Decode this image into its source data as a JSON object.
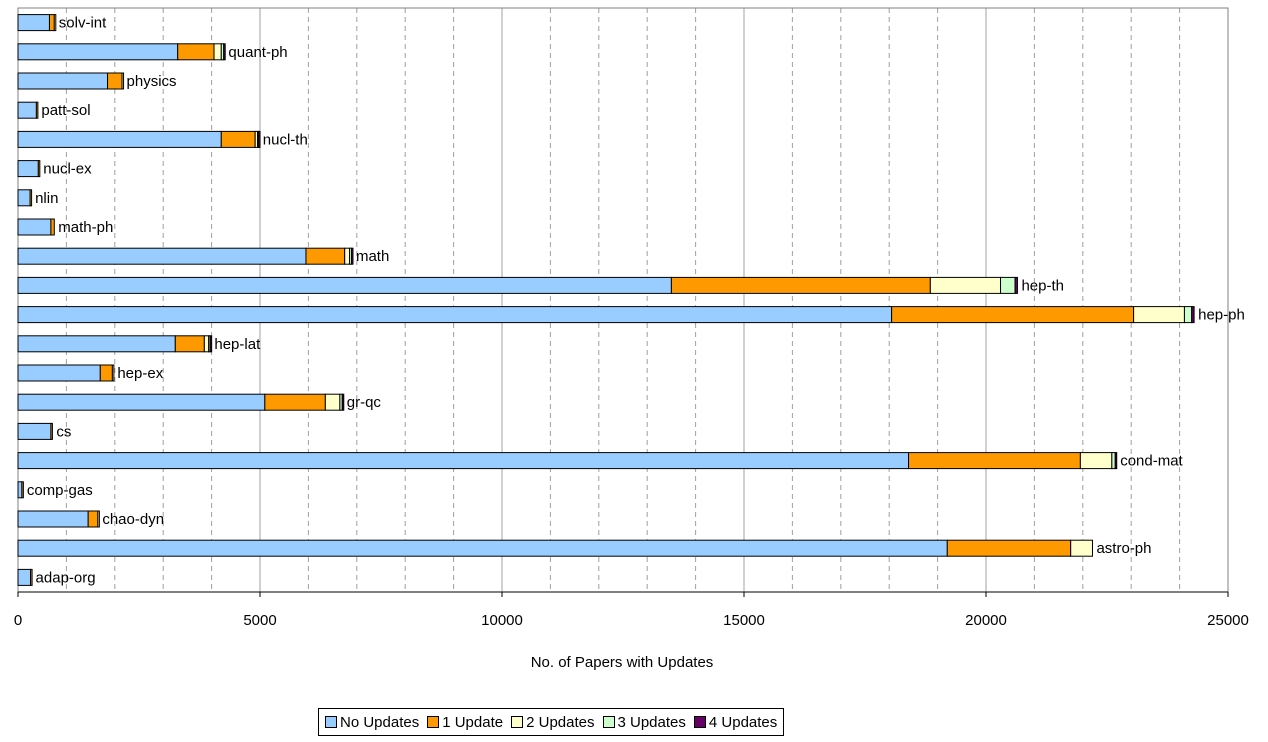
{
  "chart_data": {
    "type": "bar",
    "orientation": "horizontal",
    "stacked": true,
    "xlabel": "No. of Papers with Updates",
    "xlim": [
      0,
      25000
    ],
    "x_ticks": [
      0,
      5000,
      10000,
      15000,
      20000,
      25000
    ],
    "grid": "vertical major solid, minor dashed",
    "legend_position": "bottom",
    "categories": [
      "solv-int",
      "quant-ph",
      "physics",
      "patt-sol",
      "nucl-th",
      "nucl-ex",
      "nlin",
      "math-ph",
      "math",
      "hep-th",
      "hep-ph",
      "hep-lat",
      "hep-ex",
      "gr-qc",
      "cs",
      "cond-mat",
      "comp-gas",
      "chao-dyn",
      "astro-ph",
      "adap-org"
    ],
    "series": [
      {
        "name": "No Updates",
        "color": "#99ccff",
        "values": [
          650,
          3300,
          1850,
          380,
          4200,
          420,
          250,
          680,
          5950,
          13500,
          18050,
          3250,
          1700,
          5100,
          680,
          18400,
          80,
          1450,
          19200,
          260
        ]
      },
      {
        "name": "1 Update",
        "color": "#ff9900",
        "values": [
          100,
          750,
          300,
          20,
          700,
          20,
          20,
          70,
          800,
          5350,
          5000,
          600,
          250,
          1250,
          30,
          3550,
          20,
          200,
          2550,
          20
        ]
      },
      {
        "name": "2 Updates",
        "color": "#ffffcc",
        "values": [
          10,
          150,
          10,
          0,
          50,
          0,
          0,
          0,
          100,
          1450,
          1050,
          90,
          20,
          300,
          0,
          650,
          0,
          10,
          450,
          0
        ]
      },
      {
        "name": "3 Updates",
        "color": "#ccffcc",
        "values": [
          0,
          50,
          0,
          0,
          20,
          0,
          0,
          0,
          40,
          300,
          150,
          30,
          0,
          50,
          0,
          70,
          0,
          0,
          0,
          0
        ]
      },
      {
        "name": "4 Updates",
        "color": "#660066",
        "values": [
          0,
          15,
          0,
          0,
          5,
          0,
          0,
          0,
          10,
          50,
          50,
          5,
          0,
          10,
          0,
          20,
          0,
          0,
          0,
          0
        ]
      }
    ]
  },
  "legend": {
    "items": [
      {
        "label": "No Updates",
        "color": "#99ccff"
      },
      {
        "label": "1 Update",
        "color": "#ff9900"
      },
      {
        "label": "2 Updates",
        "color": "#ffffcc"
      },
      {
        "label": "3 Updates",
        "color": "#ccffcc"
      },
      {
        "label": "4 Updates",
        "color": "#660066"
      }
    ]
  }
}
